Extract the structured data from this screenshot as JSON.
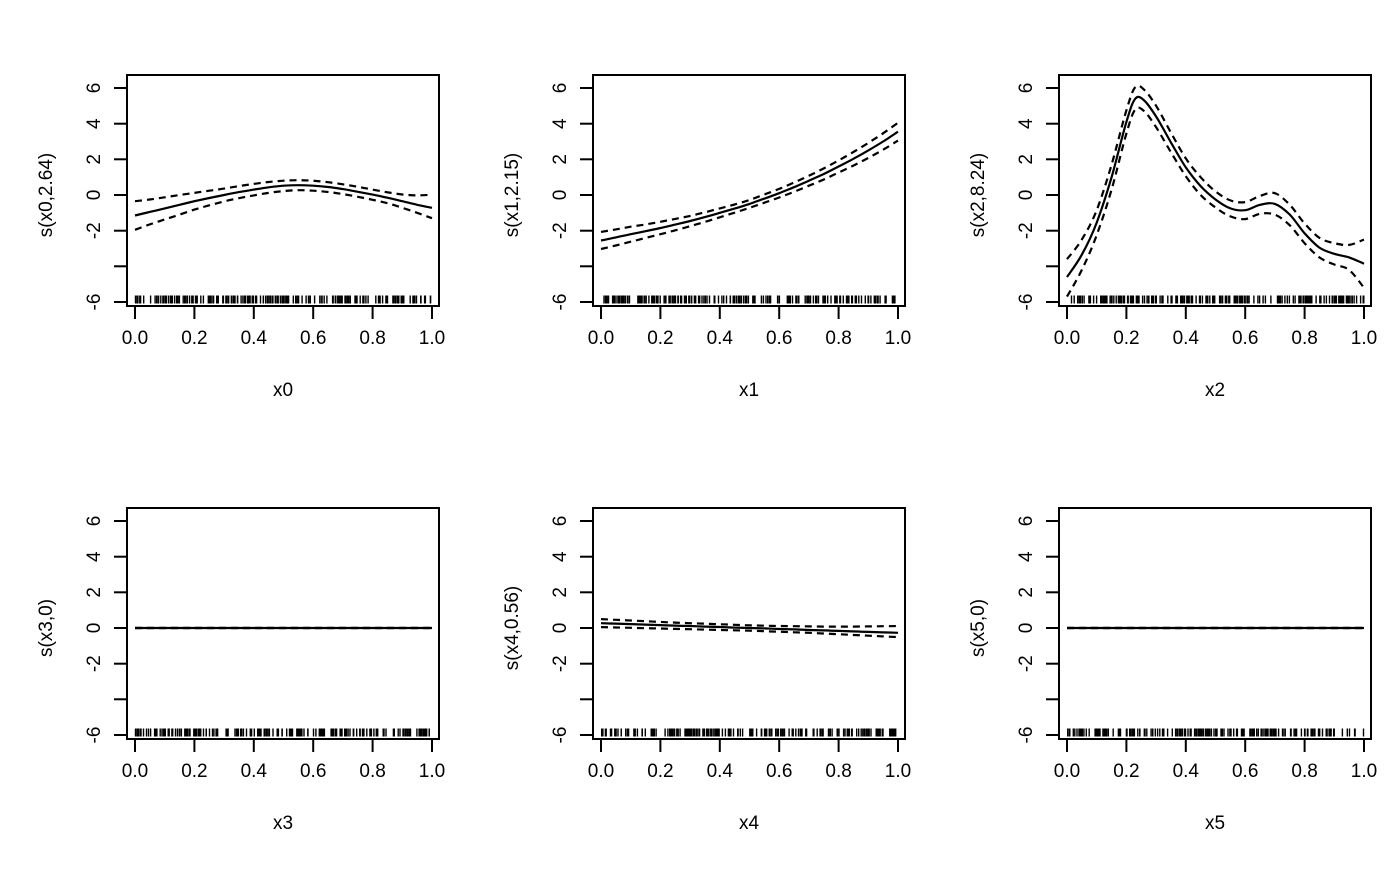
{
  "figure": {
    "background": "#ffffff",
    "line_color": "#000000",
    "layout": "2x3",
    "description": "Six GAM smooth-term plots: solid fit line, dashed 95% CI bands, data rug along the x-axis"
  },
  "axis_defaults": {
    "xlim": [
      0,
      1
    ],
    "ylim": [
      -6,
      6
    ],
    "grid": "off",
    "legend": "none",
    "x_ticks": {
      "values": [
        0,
        0.2,
        0.4,
        0.6,
        0.8,
        1.0
      ],
      "labels": [
        "0.0",
        "0.2",
        "0.4",
        "0.6",
        "0.8",
        "1.0"
      ]
    },
    "y_ticks": {
      "values": [
        6,
        4,
        2,
        0,
        -2,
        -4,
        -6
      ],
      "labels": [
        "6",
        "4",
        "2",
        "0",
        "-2",
        "",
        "-6"
      ]
    }
  },
  "chart_data": [
    {
      "type": "line",
      "xlabel": "x0",
      "ylabel": "s(x0,2.64)",
      "x": [
        0,
        0.05,
        0.1,
        0.15,
        0.2,
        0.25,
        0.3,
        0.35,
        0.4,
        0.45,
        0.5,
        0.55,
        0.6,
        0.65,
        0.7,
        0.75,
        0.8,
        0.85,
        0.9,
        0.95,
        1
      ],
      "series": [
        {
          "name": "fit",
          "style": "solid",
          "values": [
            -1.15,
            -0.95,
            -0.75,
            -0.55,
            -0.35,
            -0.17,
            0,
            0.16,
            0.3,
            0.43,
            0.52,
            0.55,
            0.52,
            0.45,
            0.33,
            0.18,
            0.02,
            -0.15,
            -0.35,
            -0.55,
            -0.72
          ]
        },
        {
          "name": "upper-95ci",
          "style": "dashed",
          "values": [
            -0.35,
            -0.25,
            -0.13,
            0,
            0.12,
            0.24,
            0.36,
            0.5,
            0.62,
            0.73,
            0.8,
            0.83,
            0.8,
            0.72,
            0.6,
            0.46,
            0.3,
            0.15,
            0.03,
            -0.02,
            0.02
          ]
        },
        {
          "name": "lower-95ci",
          "style": "dashed",
          "values": [
            -1.95,
            -1.65,
            -1.37,
            -1.1,
            -0.82,
            -0.58,
            -0.36,
            -0.18,
            -0.02,
            0.12,
            0.22,
            0.27,
            0.24,
            0.17,
            0.05,
            -0.1,
            -0.27,
            -0.46,
            -0.72,
            -1.0,
            -1.3
          ]
        }
      ],
      "rug": {
        "count": 190,
        "seed": 101
      }
    },
    {
      "type": "line",
      "xlabel": "x1",
      "ylabel": "s(x1,2.15)",
      "x": [
        0,
        0.05,
        0.1,
        0.15,
        0.2,
        0.25,
        0.3,
        0.35,
        0.4,
        0.45,
        0.5,
        0.55,
        0.6,
        0.65,
        0.7,
        0.75,
        0.8,
        0.85,
        0.9,
        0.95,
        1
      ],
      "series": [
        {
          "name": "fit",
          "style": "solid",
          "values": [
            -2.55,
            -2.38,
            -2.2,
            -2.03,
            -1.85,
            -1.66,
            -1.46,
            -1.24,
            -1.0,
            -0.76,
            -0.5,
            -0.2,
            0.1,
            0.44,
            0.8,
            1.18,
            1.6,
            2.03,
            2.5,
            3.0,
            3.55
          ]
        },
        {
          "name": "upper-95ci",
          "style": "dashed",
          "values": [
            -2.07,
            -1.93,
            -1.78,
            -1.65,
            -1.5,
            -1.34,
            -1.17,
            -0.97,
            -0.75,
            -0.53,
            -0.28,
            0.03,
            0.34,
            0.7,
            1.08,
            1.49,
            1.94,
            2.41,
            2.92,
            3.46,
            4.05
          ]
        },
        {
          "name": "lower-95ci",
          "style": "dashed",
          "values": [
            -3.03,
            -2.83,
            -2.62,
            -2.41,
            -2.2,
            -1.98,
            -1.75,
            -1.51,
            -1.25,
            -0.99,
            -0.72,
            -0.43,
            -0.14,
            0.18,
            0.52,
            0.87,
            1.26,
            1.65,
            2.08,
            2.54,
            3.05
          ]
        }
      ],
      "rug": {
        "count": 190,
        "seed": 202
      }
    },
    {
      "type": "line",
      "xlabel": "x2",
      "ylabel": "s(x2,8.24)",
      "x": [
        0,
        0.05,
        0.1,
        0.15,
        0.2,
        0.23,
        0.26,
        0.3,
        0.35,
        0.4,
        0.45,
        0.5,
        0.55,
        0.6,
        0.65,
        0.7,
        0.75,
        0.8,
        0.85,
        0.9,
        0.95,
        1
      ],
      "series": [
        {
          "name": "fit",
          "style": "solid",
          "values": [
            -4.6,
            -3.35,
            -1.55,
            1.0,
            4.1,
            5.4,
            5.3,
            4.4,
            2.95,
            1.55,
            0.5,
            -0.25,
            -0.75,
            -0.85,
            -0.55,
            -0.5,
            -1.1,
            -2.15,
            -2.95,
            -3.3,
            -3.5,
            -3.85
          ]
        },
        {
          "name": "upper-95ci",
          "style": "dashed",
          "values": [
            -3.6,
            -2.5,
            -0.85,
            1.7,
            4.75,
            6.05,
            5.9,
            5.0,
            3.5,
            2.05,
            1.0,
            0.2,
            -0.3,
            -0.4,
            -0.05,
            0.1,
            -0.55,
            -1.6,
            -2.4,
            -2.7,
            -2.8,
            -2.5
          ]
        },
        {
          "name": "lower-95ci",
          "style": "dashed",
          "values": [
            -5.7,
            -4.2,
            -2.25,
            0.3,
            3.45,
            4.8,
            4.7,
            3.8,
            2.4,
            1.05,
            0.0,
            -0.7,
            -1.2,
            -1.35,
            -1.05,
            -1.1,
            -1.7,
            -2.7,
            -3.5,
            -3.9,
            -4.2,
            -5.2
          ]
        }
      ],
      "rug": {
        "count": 200,
        "seed": 303
      }
    },
    {
      "type": "line",
      "xlabel": "x3",
      "ylabel": "s(x3,0)",
      "x": [
        0,
        0.05,
        0.1,
        0.15,
        0.2,
        0.25,
        0.3,
        0.35,
        0.4,
        0.45,
        0.5,
        0.55,
        0.6,
        0.65,
        0.7,
        0.75,
        0.8,
        0.85,
        0.9,
        0.95,
        1
      ],
      "series": [
        {
          "name": "fit",
          "style": "solid",
          "values": [
            0,
            0,
            0,
            0,
            0,
            0,
            0,
            0,
            0,
            0,
            0,
            0,
            0,
            0,
            0,
            0,
            0,
            0,
            0,
            0,
            0
          ]
        },
        {
          "name": "upper-95ci",
          "style": "dashed",
          "values": [
            0,
            0,
            0,
            0,
            0,
            0,
            0,
            0,
            0,
            0,
            0,
            0,
            0,
            0,
            0,
            0,
            0,
            0,
            0,
            0,
            0
          ]
        },
        {
          "name": "lower-95ci",
          "style": "dashed",
          "values": [
            0,
            0,
            0,
            0,
            0,
            0,
            0,
            0,
            0,
            0,
            0,
            0,
            0,
            0,
            0,
            0,
            0,
            0,
            0,
            0,
            0
          ]
        }
      ],
      "rug": {
        "count": 190,
        "seed": 404
      }
    },
    {
      "type": "line",
      "xlabel": "x4",
      "ylabel": "s(x4,0.56)",
      "x": [
        0,
        0.05,
        0.1,
        0.15,
        0.2,
        0.25,
        0.3,
        0.35,
        0.4,
        0.45,
        0.5,
        0.55,
        0.6,
        0.65,
        0.7,
        0.75,
        0.8,
        0.85,
        0.9,
        0.95,
        1
      ],
      "series": [
        {
          "name": "fit",
          "style": "solid",
          "values": [
            0.27,
            0.245,
            0.22,
            0.19,
            0.165,
            0.135,
            0.11,
            0.08,
            0.055,
            0.025,
            0,
            -0.025,
            -0.055,
            -0.08,
            -0.11,
            -0.135,
            -0.165,
            -0.19,
            -0.22,
            -0.245,
            -0.27
          ]
        },
        {
          "name": "upper-95ci",
          "style": "dashed",
          "values": [
            0.5,
            0.46,
            0.42,
            0.38,
            0.34,
            0.3,
            0.27,
            0.24,
            0.21,
            0.18,
            0.15,
            0.13,
            0.11,
            0.1,
            0.09,
            0.08,
            0.08,
            0.08,
            0.09,
            0.1,
            0.11
          ]
        },
        {
          "name": "lower-95ci",
          "style": "dashed",
          "values": [
            0.05,
            0.03,
            0.01,
            -0.01,
            -0.03,
            -0.05,
            -0.07,
            -0.09,
            -0.11,
            -0.13,
            -0.15,
            -0.18,
            -0.21,
            -0.24,
            -0.27,
            -0.31,
            -0.35,
            -0.39,
            -0.43,
            -0.47,
            -0.51
          ]
        }
      ],
      "rug": {
        "count": 190,
        "seed": 505
      }
    },
    {
      "type": "line",
      "xlabel": "x5",
      "ylabel": "s(x5,0)",
      "x": [
        0,
        0.05,
        0.1,
        0.15,
        0.2,
        0.25,
        0.3,
        0.35,
        0.4,
        0.45,
        0.5,
        0.55,
        0.6,
        0.65,
        0.7,
        0.75,
        0.8,
        0.85,
        0.9,
        0.95,
        1
      ],
      "series": [
        {
          "name": "fit",
          "style": "solid",
          "values": [
            0,
            0,
            0,
            0,
            0,
            0,
            0,
            0,
            0,
            0,
            0,
            0,
            0,
            0,
            0,
            0,
            0,
            0,
            0,
            0,
            0
          ]
        },
        {
          "name": "upper-95ci",
          "style": "dashed",
          "values": [
            0,
            0,
            0,
            0,
            0,
            0,
            0,
            0,
            0,
            0,
            0,
            0,
            0,
            0,
            0,
            0,
            0,
            0,
            0,
            0,
            0
          ]
        },
        {
          "name": "lower-95ci",
          "style": "dashed",
          "values": [
            0,
            0,
            0,
            0,
            0,
            0,
            0,
            0,
            0,
            0,
            0,
            0,
            0,
            0,
            0,
            0,
            0,
            0,
            0,
            0,
            0
          ]
        }
      ],
      "rug": {
        "count": 190,
        "seed": 606
      }
    }
  ]
}
